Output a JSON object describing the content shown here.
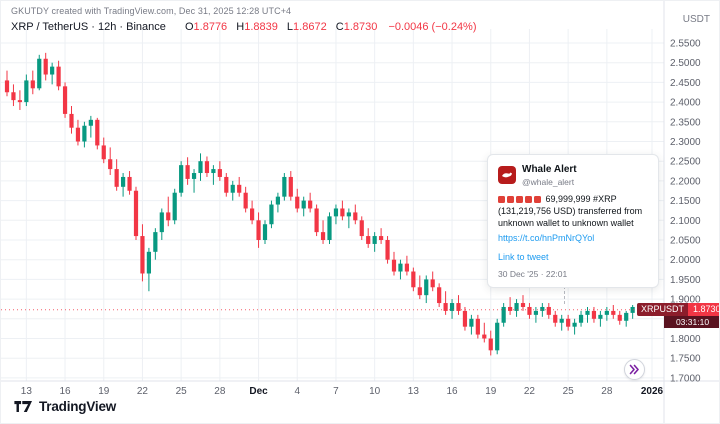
{
  "header": {
    "credit": "GKUTDY created with TradingView.com, Dec 31, 2025 12:28 UTC+4",
    "symbol": "XRP / TetherUS · 12h · Binance",
    "ohlc": {
      "o_label": "O",
      "o": "1.8776",
      "h_label": "H",
      "h": "1.8839",
      "l_label": "L",
      "l": "1.8672",
      "c_label": "C",
      "c": "1.8730"
    },
    "change": "−0.0046 (−0.24%)"
  },
  "axes": {
    "currency_label": "USDT"
  },
  "price_label": {
    "symbol": "XRPUSDT",
    "price": "1.8730",
    "countdown": "03:31:10"
  },
  "tweet_card": {
    "author": "Whale Alert",
    "handle": "@whale_alert",
    "siren_count": 5,
    "body_text": "69,999,999 #XRP (131,219,756 USD) transferred from unknown wallet to unknown wallet",
    "url": "https://t.co/hnPmNrQYol",
    "link_label": "Link to tweet",
    "timestamp": "30 Dec '25 · 22:01"
  },
  "logo": {
    "text": "TradingView"
  },
  "colors": {
    "up": "#089981",
    "down": "#F23645",
    "grid": "#edf0f4",
    "axis_border": "#e0e3eb",
    "axis_text": "#5d606b",
    "emphasis_text": "#131722",
    "link": "#1d9bf0",
    "badge_symbol_bg": "#8c1d2b",
    "badge_price_bg": "#F23645",
    "countdown_bg": "#5a1320",
    "realtime_arrow": "#7b1fa2"
  },
  "chart_data": {
    "type": "candlestick",
    "title": "XRP / TetherUS · 12h · Binance",
    "symbol": "XRPUSDT",
    "exchange": "Binance",
    "interval": "12h",
    "ylim": [
      1.7,
      2.55
    ],
    "current_price": 1.873,
    "price_ticks": [
      "2.5500",
      "2.5000",
      "2.4500",
      "2.4000",
      "2.3500",
      "2.3000",
      "2.2500",
      "2.2000",
      "2.1500",
      "2.1000",
      "2.0500",
      "2.0000",
      "1.9500",
      "1.9000",
      "1.8500",
      "1.8000",
      "1.7500",
      "1.7000"
    ],
    "time_ticks": [
      {
        "label": "13",
        "slot": 3,
        "em": false
      },
      {
        "label": "16",
        "slot": 9,
        "em": false
      },
      {
        "label": "19",
        "slot": 15,
        "em": false
      },
      {
        "label": "22",
        "slot": 21,
        "em": false
      },
      {
        "label": "25",
        "slot": 27,
        "em": false
      },
      {
        "label": "28",
        "slot": 33,
        "em": false
      },
      {
        "label": "Dec",
        "slot": 39,
        "em": true
      },
      {
        "label": "4",
        "slot": 45,
        "em": false
      },
      {
        "label": "7",
        "slot": 51,
        "em": false
      },
      {
        "label": "10",
        "slot": 57,
        "em": false
      },
      {
        "label": "13",
        "slot": 63,
        "em": false
      },
      {
        "label": "16",
        "slot": 69,
        "em": false
      },
      {
        "label": "19",
        "slot": 75,
        "em": false
      },
      {
        "label": "22",
        "slot": 81,
        "em": false
      },
      {
        "label": "25",
        "slot": 87,
        "em": false
      },
      {
        "label": "28",
        "slot": 93,
        "em": false
      },
      {
        "label": "2026",
        "slot": 100,
        "em": true
      }
    ],
    "candles": [
      [
        2.455,
        2.48,
        2.415,
        2.425
      ],
      [
        2.425,
        2.445,
        2.39,
        2.405
      ],
      [
        2.405,
        2.43,
        2.38,
        2.4
      ],
      [
        2.4,
        2.47,
        2.39,
        2.455
      ],
      [
        2.455,
        2.48,
        2.42,
        2.435
      ],
      [
        2.435,
        2.52,
        2.43,
        2.51
      ],
      [
        2.51,
        2.525,
        2.455,
        2.47
      ],
      [
        2.47,
        2.5,
        2.445,
        2.49
      ],
      [
        2.49,
        2.505,
        2.43,
        2.44
      ],
      [
        2.44,
        2.45,
        2.36,
        2.37
      ],
      [
        2.37,
        2.39,
        2.32,
        2.335
      ],
      [
        2.335,
        2.355,
        2.29,
        2.3
      ],
      [
        2.3,
        2.35,
        2.285,
        2.34
      ],
      [
        2.34,
        2.365,
        2.31,
        2.355
      ],
      [
        2.355,
        2.36,
        2.28,
        2.29
      ],
      [
        2.29,
        2.31,
        2.245,
        2.255
      ],
      [
        2.255,
        2.285,
        2.215,
        2.23
      ],
      [
        2.23,
        2.255,
        2.175,
        2.185
      ],
      [
        2.185,
        2.22,
        2.16,
        2.21
      ],
      [
        2.21,
        2.225,
        2.165,
        2.175
      ],
      [
        2.175,
        2.185,
        2.05,
        2.06
      ],
      [
        2.06,
        2.09,
        1.945,
        1.965
      ],
      [
        1.965,
        2.03,
        1.92,
        2.02
      ],
      [
        2.02,
        2.08,
        2.0,
        2.07
      ],
      [
        2.07,
        2.13,
        2.05,
        2.12
      ],
      [
        2.12,
        2.16,
        2.085,
        2.1
      ],
      [
        2.1,
        2.18,
        2.09,
        2.17
      ],
      [
        2.17,
        2.25,
        2.16,
        2.24
      ],
      [
        2.24,
        2.26,
        2.19,
        2.205
      ],
      [
        2.205,
        2.23,
        2.17,
        2.22
      ],
      [
        2.22,
        2.27,
        2.2,
        2.25
      ],
      [
        2.25,
        2.262,
        2.21,
        2.22
      ],
      [
        2.22,
        2.24,
        2.19,
        2.23
      ],
      [
        2.23,
        2.25,
        2.2,
        2.21
      ],
      [
        2.21,
        2.22,
        2.16,
        2.17
      ],
      [
        2.17,
        2.2,
        2.15,
        2.19
      ],
      [
        2.19,
        2.21,
        2.16,
        2.17
      ],
      [
        2.17,
        2.185,
        2.12,
        2.13
      ],
      [
        2.13,
        2.15,
        2.09,
        2.1
      ],
      [
        2.1,
        2.12,
        2.03,
        2.05
      ],
      [
        2.05,
        2.1,
        2.04,
        2.09
      ],
      [
        2.09,
        2.15,
        2.08,
        2.14
      ],
      [
        2.14,
        2.17,
        2.12,
        2.16
      ],
      [
        2.16,
        2.22,
        2.15,
        2.21
      ],
      [
        2.21,
        2.225,
        2.15,
        2.16
      ],
      [
        2.16,
        2.18,
        2.12,
        2.13
      ],
      [
        2.13,
        2.16,
        2.11,
        2.15
      ],
      [
        2.15,
        2.17,
        2.12,
        2.13
      ],
      [
        2.13,
        2.14,
        2.06,
        2.07
      ],
      [
        2.07,
        2.1,
        2.04,
        2.05
      ],
      [
        2.05,
        2.12,
        2.04,
        2.11
      ],
      [
        2.11,
        2.14,
        2.09,
        2.13
      ],
      [
        2.13,
        2.15,
        2.1,
        2.11
      ],
      [
        2.11,
        2.13,
        2.08,
        2.12
      ],
      [
        2.12,
        2.14,
        2.09,
        2.1
      ],
      [
        2.1,
        2.11,
        2.05,
        2.06
      ],
      [
        2.06,
        2.08,
        2.03,
        2.04
      ],
      [
        2.04,
        2.07,
        2.02,
        2.06
      ],
      [
        2.06,
        2.08,
        2.04,
        2.05
      ],
      [
        2.05,
        2.06,
        1.99,
        2.0
      ],
      [
        2.0,
        2.02,
        1.96,
        1.97
      ],
      [
        1.97,
        2.0,
        1.95,
        1.99
      ],
      [
        1.99,
        2.01,
        1.96,
        1.97
      ],
      [
        1.97,
        1.98,
        1.92,
        1.93
      ],
      [
        1.93,
        1.96,
        1.9,
        1.91
      ],
      [
        1.91,
        1.96,
        1.89,
        1.95
      ],
      [
        1.95,
        1.97,
        1.92,
        1.93
      ],
      [
        1.93,
        1.94,
        1.88,
        1.89
      ],
      [
        1.89,
        1.92,
        1.86,
        1.87
      ],
      [
        1.87,
        1.9,
        1.85,
        1.89
      ],
      [
        1.89,
        1.91,
        1.86,
        1.87
      ],
      [
        1.87,
        1.88,
        1.82,
        1.83
      ],
      [
        1.83,
        1.86,
        1.81,
        1.85
      ],
      [
        1.85,
        1.86,
        1.8,
        1.81
      ],
      [
        1.81,
        1.84,
        1.79,
        1.8
      ],
      [
        1.8,
        1.82,
        1.757,
        1.77
      ],
      [
        1.77,
        1.85,
        1.76,
        1.84
      ],
      [
        1.84,
        1.89,
        1.83,
        1.88
      ],
      [
        1.88,
        1.905,
        1.86,
        1.87
      ],
      [
        1.87,
        1.9,
        1.855,
        1.89
      ],
      [
        1.89,
        1.91,
        1.87,
        1.88
      ],
      [
        1.88,
        1.89,
        1.85,
        1.86
      ],
      [
        1.86,
        1.88,
        1.84,
        1.87
      ],
      [
        1.87,
        1.89,
        1.855,
        1.88
      ],
      [
        1.88,
        1.89,
        1.85,
        1.86
      ],
      [
        1.86,
        1.87,
        1.83,
        1.84
      ],
      [
        1.84,
        1.86,
        1.82,
        1.85
      ],
      [
        1.85,
        1.86,
        1.82,
        1.83
      ],
      [
        1.83,
        1.85,
        1.81,
        1.84
      ],
      [
        1.84,
        1.87,
        1.83,
        1.86
      ],
      [
        1.86,
        1.88,
        1.84,
        1.87
      ],
      [
        1.87,
        1.88,
        1.84,
        1.85
      ],
      [
        1.85,
        1.87,
        1.83,
        1.86
      ],
      [
        1.86,
        1.88,
        1.845,
        1.87
      ],
      [
        1.87,
        1.885,
        1.85,
        1.86
      ],
      [
        1.86,
        1.87,
        1.835,
        1.845
      ],
      [
        1.845,
        1.87,
        1.83,
        1.865
      ],
      [
        1.865,
        1.885,
        1.85,
        1.88
      ],
      [
        1.8776,
        1.8839,
        1.8672,
        1.873
      ]
    ]
  }
}
